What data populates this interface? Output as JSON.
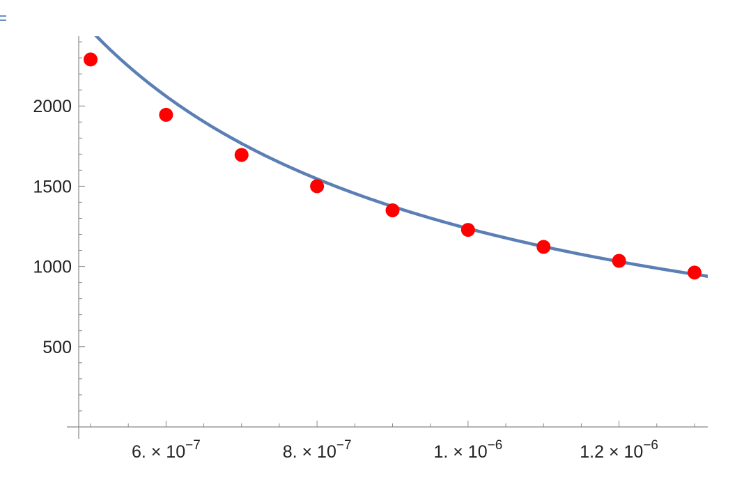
{
  "chart_data": {
    "type": "scatter",
    "x_scale": "linear",
    "xlim": [
      5e-07,
      1.32e-06
    ],
    "ylim": [
      0,
      2450
    ],
    "x_ticks": [
      {
        "value": 6e-07,
        "mantissa": "6.",
        "exponent": "−7"
      },
      {
        "value": 8e-07,
        "mantissa": "8.",
        "exponent": "−7"
      },
      {
        "value": 1e-06,
        "mantissa": "1.",
        "exponent": "−6"
      },
      {
        "value": 1.2e-06,
        "mantissa": "1.2",
        "exponent": "−6"
      }
    ],
    "x_tick_base": "× 10",
    "y_ticks": [
      {
        "value": 500,
        "label": "500"
      },
      {
        "value": 1000,
        "label": "1000"
      },
      {
        "value": 1500,
        "label": "1500"
      },
      {
        "value": 2000,
        "label": "2000"
      }
    ],
    "points": [
      {
        "x": 5e-07,
        "y": 2290
      },
      {
        "x": 6e-07,
        "y": 1945
      },
      {
        "x": 7e-07,
        "y": 1695
      },
      {
        "x": 8e-07,
        "y": 1500
      },
      {
        "x": 9e-07,
        "y": 1350
      },
      {
        "x": 1e-06,
        "y": 1228
      },
      {
        "x": 1.1e-06,
        "y": 1122
      },
      {
        "x": 1.2e-06,
        "y": 1035
      },
      {
        "x": 1.3e-06,
        "y": 962
      }
    ],
    "fit_curve": {
      "form": "y = a / x",
      "a": 0.0012366
    },
    "colors": {
      "points": "#ff0000",
      "curve": "#5b7fb5",
      "axes": "#888888",
      "text": "#222222"
    },
    "grid": false,
    "legend": "none"
  }
}
